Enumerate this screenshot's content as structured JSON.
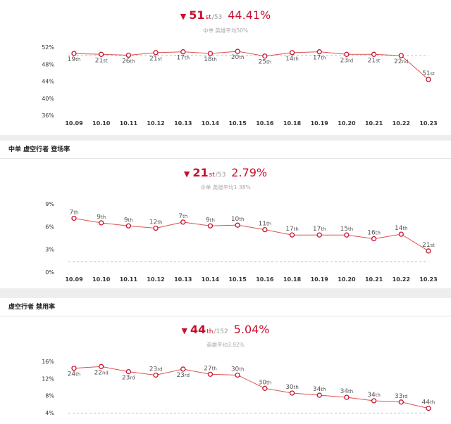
{
  "colors": {
    "accent": "#c8102e",
    "line": "#d9534f",
    "avg": "#bbbbbb",
    "axis_text": "#333333",
    "sub_text": "#aaaaaa"
  },
  "panel1": {
    "header": {
      "trend_icon": "down-triangle-icon",
      "trend": "▼",
      "rank": "51",
      "suffix": "st",
      "total": "/53",
      "percent": "44.41%"
    },
    "subtitle": "中单 英雄平均50%"
  },
  "panel2": {
    "title": "中单 虚空行者 登场率",
    "header": {
      "trend_icon": "down-triangle-icon",
      "trend": "▼",
      "rank": "21",
      "suffix": "st",
      "total": "/53",
      "percent": "2.79%"
    },
    "subtitle": "中单 英雄平均1.38%"
  },
  "panel3": {
    "title": "虚空行者 禁用率",
    "header": {
      "trend_icon": "down-triangle-icon",
      "trend": "▼",
      "rank": "44",
      "suffix": "th",
      "total": "/152",
      "percent": "5.04%"
    },
    "subtitle": "英雄平均3.92%"
  },
  "chart_data": [
    {
      "type": "line",
      "categories": [
        "10.09",
        "10.10",
        "10.11",
        "10.12",
        "10.13",
        "10.14",
        "10.15",
        "10.16",
        "10.18",
        "10.19",
        "10.20",
        "10.21",
        "10.22",
        "10.23"
      ],
      "values": [
        50.5,
        50.3,
        50.1,
        50.7,
        50.9,
        50.5,
        51.0,
        49.9,
        50.7,
        50.9,
        50.3,
        50.3,
        50.0,
        44.41
      ],
      "point_labels": [
        "19th",
        "21st",
        "26th",
        "21st",
        "17th",
        "18th",
        "20th",
        "25th",
        "14th",
        "17th",
        "23rd",
        "21st",
        "22nd",
        "51st"
      ],
      "yticks": [
        "52%",
        "48%",
        "44%",
        "40%",
        "36%"
      ],
      "ytick_values": [
        52,
        48,
        44,
        40,
        36
      ],
      "ylim": [
        36,
        52
      ],
      "average": 50,
      "last_label_above": true
    },
    {
      "type": "line",
      "categories": [
        "10.09",
        "10.10",
        "10.11",
        "10.12",
        "10.13",
        "10.14",
        "10.15",
        "10.16",
        "10.18",
        "10.19",
        "10.20",
        "10.21",
        "10.22",
        "10.23"
      ],
      "values": [
        7.1,
        6.5,
        6.1,
        5.8,
        6.6,
        6.1,
        6.2,
        5.6,
        4.9,
        4.9,
        4.9,
        4.4,
        5.0,
        2.79
      ],
      "point_labels": [
        "7th",
        "9th",
        "9th",
        "12th",
        "7th",
        "9th",
        "10th",
        "11th",
        "17th",
        "17th",
        "15th",
        "16th",
        "14th",
        "21st"
      ],
      "yticks": [
        "9%",
        "6%",
        "3%",
        "0%"
      ],
      "ytick_values": [
        9,
        6,
        3,
        0
      ],
      "ylim": [
        0,
        9
      ],
      "average": 1.38,
      "last_label_above": true
    },
    {
      "type": "line",
      "categories": [
        "10.09",
        "10.10",
        "10.11",
        "10.12",
        "10.13",
        "10.14",
        "10.15",
        "10.16",
        "10.18",
        "10.19",
        "10.20",
        "10.21",
        "10.22",
        "10.23"
      ],
      "values": [
        14.4,
        14.8,
        13.6,
        12.8,
        14.2,
        13.0,
        12.8,
        9.7,
        8.6,
        8.1,
        7.6,
        6.8,
        6.5,
        5.04
      ],
      "point_labels": [
        "24th",
        "22nd",
        "23rd",
        "23rd",
        "23rd",
        "27th",
        "30th",
        "30th",
        "30th",
        "34th",
        "34th",
        "34th",
        "33rd",
        "44th"
      ],
      "label_positions": [
        "below",
        "below",
        "below",
        "above",
        "below",
        "above",
        "above",
        "above",
        "above",
        "above",
        "above",
        "above",
        "above",
        "above"
      ],
      "yticks": [
        "16%",
        "12%",
        "8%",
        "4%"
      ],
      "ytick_values": [
        16,
        12,
        8,
        4
      ],
      "ylim": [
        4,
        16
      ],
      "average": 3.92,
      "last_label_above": true
    }
  ]
}
